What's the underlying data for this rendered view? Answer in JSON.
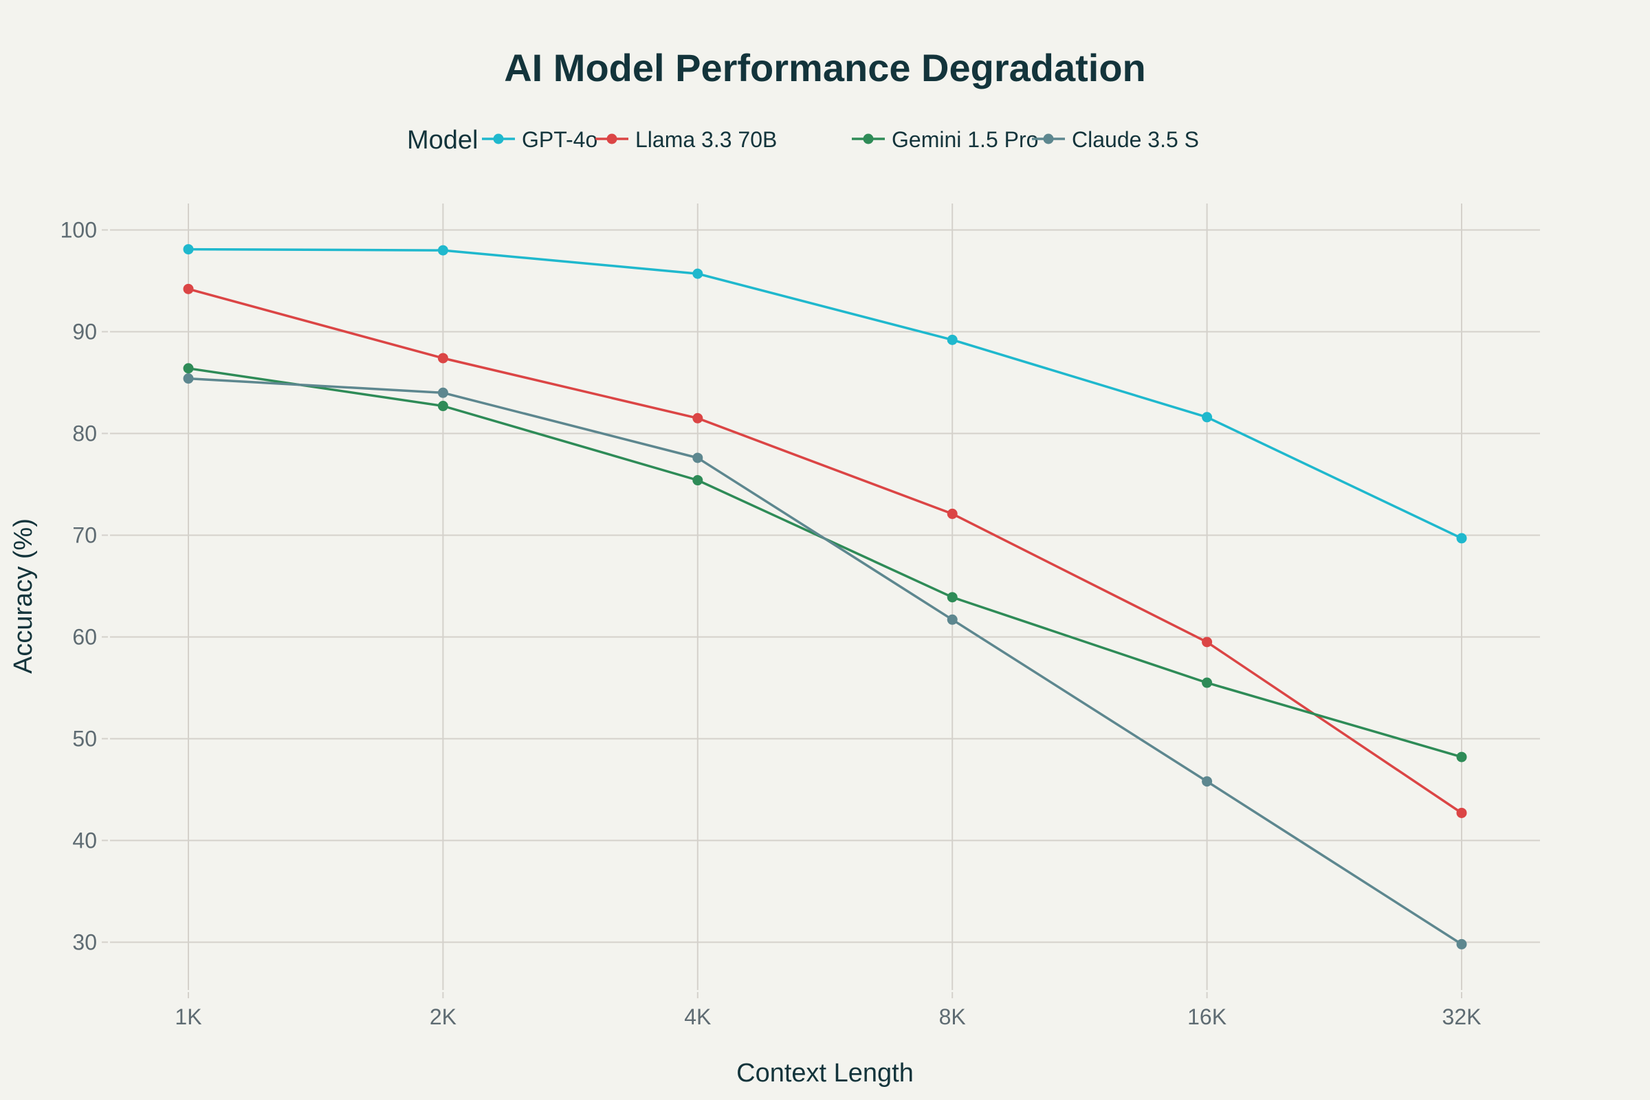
{
  "chart_data": {
    "type": "line",
    "title": "AI Model Performance Degradation",
    "xlabel": "Context Length",
    "ylabel": "Accuracy (%)",
    "categories": [
      "1K",
      "2K",
      "4K",
      "8K",
      "16K",
      "32K"
    ],
    "ylim": [
      25.3,
      102.6
    ],
    "yticks": [
      30,
      40,
      50,
      60,
      70,
      80,
      90,
      100
    ],
    "grid": true,
    "legend": {
      "title": "Model",
      "placement": "top-center",
      "orientation": "horizontal"
    },
    "series": [
      {
        "name": "GPT-4o",
        "color": "#1FB8CD",
        "values": [
          98.1,
          98.0,
          95.7,
          89.2,
          81.6,
          69.7
        ]
      },
      {
        "name": "Llama 3.3 70B",
        "color": "#DB4545",
        "values": [
          94.2,
          87.4,
          81.5,
          72.1,
          59.5,
          42.7
        ]
      },
      {
        "name": "Gemini 1.5 Pro",
        "color": "#2E8B57",
        "values": [
          86.4,
          82.7,
          75.4,
          63.9,
          55.5,
          48.2
        ]
      },
      {
        "name": "Claude 3.5 S",
        "color": "#5D878F",
        "values": [
          85.4,
          84.0,
          77.6,
          61.7,
          45.8,
          29.8
        ]
      }
    ]
  },
  "colors": {
    "background": "#F3F3EE",
    "text": "#13343B",
    "tick_text": "#5E6B72",
    "grid": "#D4D1CB"
  }
}
